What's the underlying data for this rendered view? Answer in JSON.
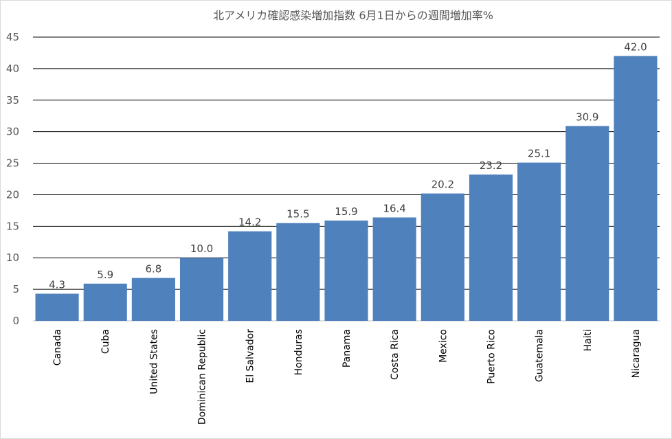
{
  "chart_data": {
    "type": "bar",
    "title": "北アメリカ確認感染増加指数 6月1日からの週間増加率%",
    "xlabel": "",
    "ylabel": "",
    "ylim": [
      0,
      45
    ],
    "yticks": [
      0,
      5,
      10,
      15,
      20,
      25,
      30,
      35,
      40,
      45
    ],
    "grid": true,
    "categories": [
      "Canada",
      "Cuba",
      "United States",
      "Dominican Republic",
      "El Salvador",
      "Honduras",
      "Panama",
      "Costa Rica",
      "Mexico",
      "Puerto Rico",
      "Guatemala",
      "Haiti",
      "Nicaragua"
    ],
    "values": [
      4.3,
      5.9,
      6.8,
      10.0,
      14.2,
      15.5,
      15.9,
      16.4,
      20.2,
      23.2,
      25.1,
      30.9,
      42.0
    ],
    "value_labels": [
      "4.3",
      "5.9",
      "6.8",
      "10.0",
      "14.2",
      "15.5",
      "15.9",
      "16.4",
      "20.2",
      "23.2",
      "25.1",
      "30.9",
      "42.0"
    ],
    "colors": {
      "bar": "#4f81bd",
      "grid": "#000000",
      "text": "#595959"
    }
  }
}
